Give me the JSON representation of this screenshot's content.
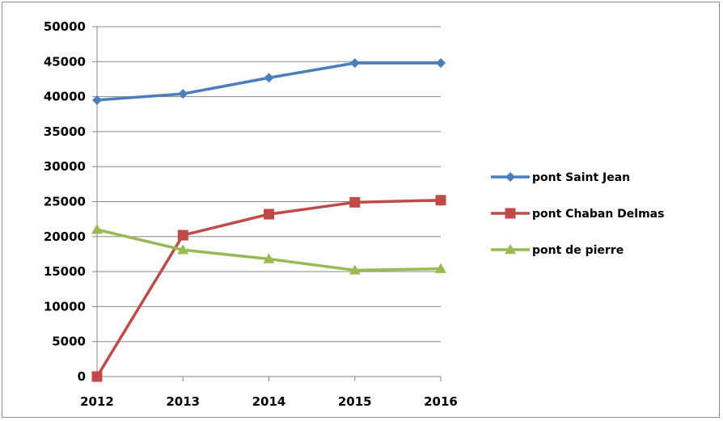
{
  "chart_data": {
    "type": "line",
    "title": "",
    "xlabel": "",
    "ylabel": "",
    "x": [
      "2012",
      "2013",
      "2014",
      "2015",
      "2016"
    ],
    "ylim": [
      0,
      50000
    ],
    "yticks": [
      0,
      5000,
      10000,
      15000,
      20000,
      25000,
      30000,
      35000,
      40000,
      45000,
      50000
    ],
    "grid": true,
    "legend_position": "right",
    "series": [
      {
        "name": "pont Saint Jean",
        "values": [
          39500,
          40400,
          42700,
          44800,
          44800
        ],
        "color": "#4a7ebb",
        "marker": "diamond"
      },
      {
        "name": "pont Chaban Delmas",
        "values": [
          0,
          20200,
          23200,
          24900,
          25200
        ],
        "color": "#be4b48",
        "marker": "square"
      },
      {
        "name": "pont de pierre",
        "values": [
          21000,
          18100,
          16800,
          15200,
          15400
        ],
        "color": "#98b954",
        "marker": "triangle"
      }
    ]
  }
}
